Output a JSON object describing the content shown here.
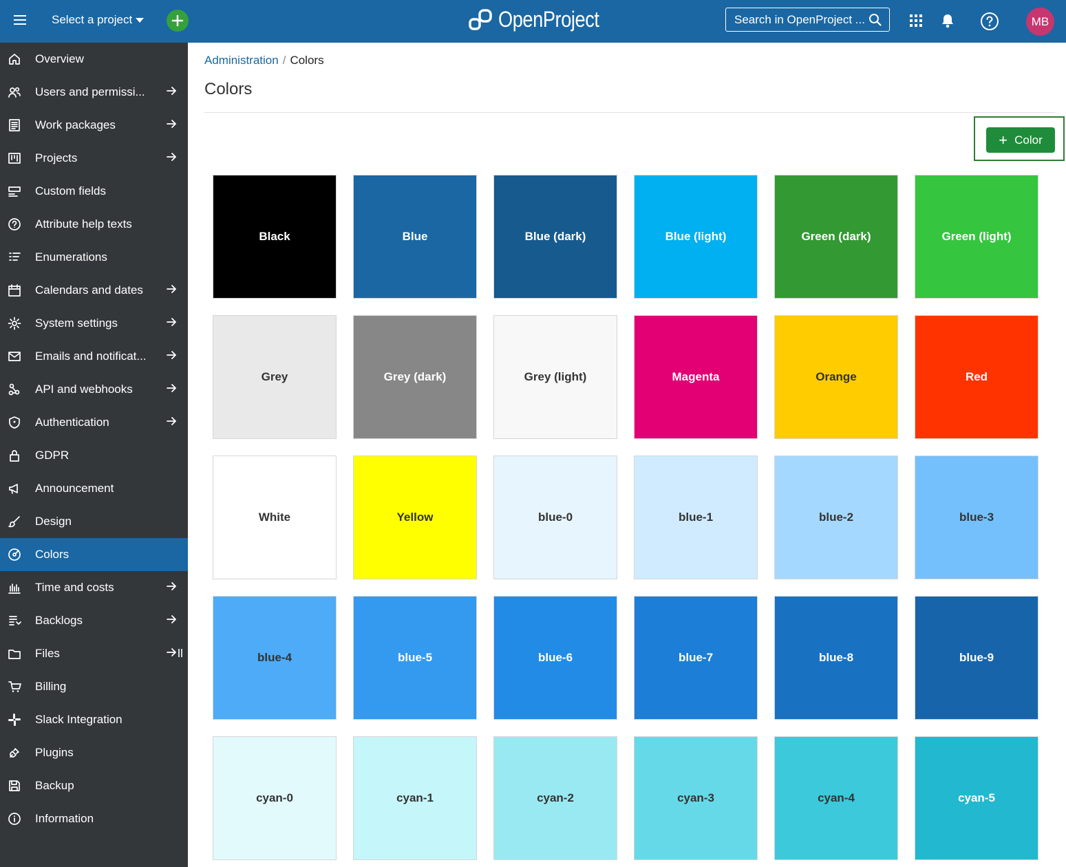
{
  "header": {
    "project_select": "Select a project",
    "logo_text": "OpenProject",
    "search_placeholder": "Search in OpenProject ...",
    "avatar_initials": "MB"
  },
  "sidebar": {
    "items": [
      {
        "label": "Overview",
        "icon": "home-icon",
        "arrow": false
      },
      {
        "label": "Users and permissi...",
        "icon": "users-icon",
        "arrow": true
      },
      {
        "label": "Work packages",
        "icon": "work-packages-icon",
        "arrow": true
      },
      {
        "label": "Projects",
        "icon": "projects-icon",
        "arrow": true
      },
      {
        "label": "Custom fields",
        "icon": "custom-fields-icon",
        "arrow": false
      },
      {
        "label": "Attribute help texts",
        "icon": "help-circle-icon",
        "arrow": false
      },
      {
        "label": "Enumerations",
        "icon": "enumerations-icon",
        "arrow": false
      },
      {
        "label": "Calendars and dates",
        "icon": "calendar-icon",
        "arrow": true
      },
      {
        "label": "System settings",
        "icon": "gear-icon",
        "arrow": true
      },
      {
        "label": "Emails and notificat...",
        "icon": "mail-icon",
        "arrow": true
      },
      {
        "label": "API and webhooks",
        "icon": "webhook-icon",
        "arrow": true
      },
      {
        "label": "Authentication",
        "icon": "shield-icon",
        "arrow": true
      },
      {
        "label": "GDPR",
        "icon": "lock-icon",
        "arrow": false
      },
      {
        "label": "Announcement",
        "icon": "megaphone-icon",
        "arrow": false
      },
      {
        "label": "Design",
        "icon": "brush-icon",
        "arrow": false
      },
      {
        "label": "Colors",
        "icon": "palette-icon",
        "arrow": false,
        "active": true
      },
      {
        "label": "Time and costs",
        "icon": "bar-chart-icon",
        "arrow": true
      },
      {
        "label": "Backlogs",
        "icon": "backlogs-icon",
        "arrow": true
      },
      {
        "label": "Files",
        "icon": "folder-icon",
        "arrow": true,
        "pin": true
      },
      {
        "label": "Billing",
        "icon": "cart-icon",
        "arrow": false
      },
      {
        "label": "Slack Integration",
        "icon": "slack-icon",
        "arrow": false
      },
      {
        "label": "Plugins",
        "icon": "plug-icon",
        "arrow": false
      },
      {
        "label": "Backup",
        "icon": "save-icon",
        "arrow": false
      },
      {
        "label": "Information",
        "icon": "info-icon",
        "arrow": false
      }
    ]
  },
  "breadcrumb": {
    "parent": "Administration",
    "current": "Colors"
  },
  "page_title": "Colors",
  "add_button_label": "Color",
  "colors": [
    {
      "name": "Black",
      "hex": "#000000",
      "text": "#ffffff"
    },
    {
      "name": "Blue",
      "hex": "#1a67a3",
      "text": "#ffffff"
    },
    {
      "name": "Blue (dark)",
      "hex": "#175a8e",
      "text": "#ffffff"
    },
    {
      "name": "Blue (light)",
      "hex": "#00b0f0",
      "text": "#ffffff"
    },
    {
      "name": "Green (dark)",
      "hex": "#339933",
      "text": "#ffffff"
    },
    {
      "name": "Green (light)",
      "hex": "#35c53f",
      "text": "#ffffff"
    },
    {
      "name": "Grey",
      "hex": "#e9e9e9",
      "text": "#333333"
    },
    {
      "name": "Grey (dark)",
      "hex": "#878787",
      "text": "#ffffff"
    },
    {
      "name": "Grey (light)",
      "hex": "#f8f8f8",
      "text": "#333333"
    },
    {
      "name": "Magenta",
      "hex": "#e20074",
      "text": "#ffffff"
    },
    {
      "name": "Orange",
      "hex": "#ffcc00",
      "text": "#333333"
    },
    {
      "name": "Red",
      "hex": "#ff3300",
      "text": "#ffffff"
    },
    {
      "name": "White",
      "hex": "#ffffff",
      "text": "#333333"
    },
    {
      "name": "Yellow",
      "hex": "#ffff00",
      "text": "#333333"
    },
    {
      "name": "blue-0",
      "hex": "#e7f5ff",
      "text": "#333333"
    },
    {
      "name": "blue-1",
      "hex": "#d0ebff",
      "text": "#333333"
    },
    {
      "name": "blue-2",
      "hex": "#a5d8ff",
      "text": "#333333"
    },
    {
      "name": "blue-3",
      "hex": "#74c0fc",
      "text": "#333333"
    },
    {
      "name": "blue-4",
      "hex": "#4dabf7",
      "text": "#333333"
    },
    {
      "name": "blue-5",
      "hex": "#339af0",
      "text": "#ffffff"
    },
    {
      "name": "blue-6",
      "hex": "#228be6",
      "text": "#ffffff"
    },
    {
      "name": "blue-7",
      "hex": "#1c7ed6",
      "text": "#ffffff"
    },
    {
      "name": "blue-8",
      "hex": "#1971c2",
      "text": "#ffffff"
    },
    {
      "name": "blue-9",
      "hex": "#1864ab",
      "text": "#ffffff"
    },
    {
      "name": "cyan-0",
      "hex": "#e3fafc",
      "text": "#333333"
    },
    {
      "name": "cyan-1",
      "hex": "#c5f6fa",
      "text": "#333333"
    },
    {
      "name": "cyan-2",
      "hex": "#99e9f2",
      "text": "#333333"
    },
    {
      "name": "cyan-3",
      "hex": "#66d9e8",
      "text": "#333333"
    },
    {
      "name": "cyan-4",
      "hex": "#3bc9db",
      "text": "#333333"
    },
    {
      "name": "cyan-5",
      "hex": "#22b8cf",
      "text": "#ffffff"
    }
  ]
}
